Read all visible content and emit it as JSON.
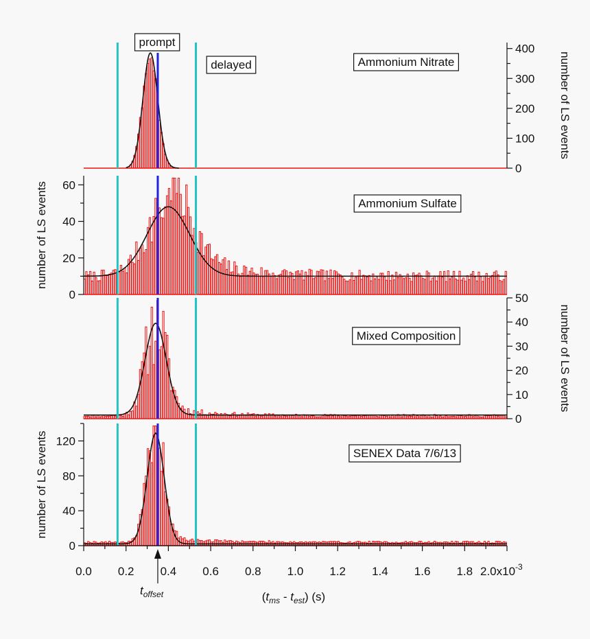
{
  "chart_data": {
    "type": "bar",
    "x_axis": {
      "label_prefix": "(",
      "label_t1": "t",
      "label_t1_sub": "ms",
      "label_mid": " - ",
      "label_t2": "t",
      "label_t2_sub": "est",
      "label_suffix": ") (s)",
      "range": [
        0.0,
        0.002
      ],
      "tick_values": [
        0.0,
        0.0002,
        0.0004,
        0.0006,
        0.0008,
        0.001,
        0.0012,
        0.0014,
        0.0016,
        0.0018
      ],
      "tick_labels": [
        "0.0",
        "0.2",
        "0.4",
        "0.6",
        "0.8",
        "1.0",
        "1.2",
        "1.4",
        "1.6",
        "1.8"
      ],
      "end_label": "2.0x10",
      "end_exponent": "-3"
    },
    "markers": {
      "prompt_window": [
        0.00016,
        0.00053
      ],
      "t_offset": 0.00035,
      "prompt_label": "prompt",
      "delayed_label": "delayed",
      "offset_label": "t",
      "offset_sub": "offset",
      "window_color": "#22c4c4",
      "offset_color": "#1f22e0"
    },
    "colors": {
      "histogram": "#ee1111",
      "fit": "#111111"
    },
    "panels": [
      {
        "name": "Ammonium Nitrate",
        "ylabel": "number of LS events",
        "axis_side": "right",
        "ylim": [
          0,
          420
        ],
        "y_ticks": [
          0,
          100,
          200,
          300,
          400
        ],
        "fit": {
          "center": 0.000315,
          "sigma": 3.5e-05,
          "amplitude": 385,
          "baseline": 0
        },
        "hist": {
          "noise": 0.08,
          "tail": 0,
          "baseline": 0,
          "seed": 3
        }
      },
      {
        "name": "Ammonium Sulfate",
        "ylabel": "number of LS events",
        "axis_side": "left",
        "ylim": [
          0,
          65
        ],
        "y_ticks": [
          0,
          20,
          40,
          60
        ],
        "fit": {
          "center": 0.0004,
          "sigma": 0.0001,
          "amplitude": 38,
          "baseline": 10
        },
        "hist": {
          "noise": 0.3,
          "tail": 18,
          "baseline": 10,
          "seed": 7
        }
      },
      {
        "name": "Mixed Composition",
        "ylabel": "number of LS events",
        "axis_side": "right",
        "ylim": [
          0,
          50
        ],
        "y_ticks": [
          0,
          10,
          20,
          30,
          40,
          50
        ],
        "fit": {
          "center": 0.00034,
          "sigma": 5e-05,
          "amplitude": 38,
          "baseline": 1.5
        },
        "hist": {
          "noise": 0.45,
          "tail": 4,
          "baseline": 1.2,
          "seed": 11
        }
      },
      {
        "name": "SENEX Data 7/6/13",
        "ylabel": "number of LS events",
        "axis_side": "left",
        "ylim": [
          0,
          140
        ],
        "y_ticks": [
          0,
          40,
          80,
          120
        ],
        "fit": {
          "center": 0.00034,
          "sigma": 4e-05,
          "amplitude": 127,
          "baseline": 2
        },
        "hist": {
          "noise": 0.3,
          "tail": 6,
          "baseline": 4,
          "seed": 19
        }
      }
    ]
  }
}
